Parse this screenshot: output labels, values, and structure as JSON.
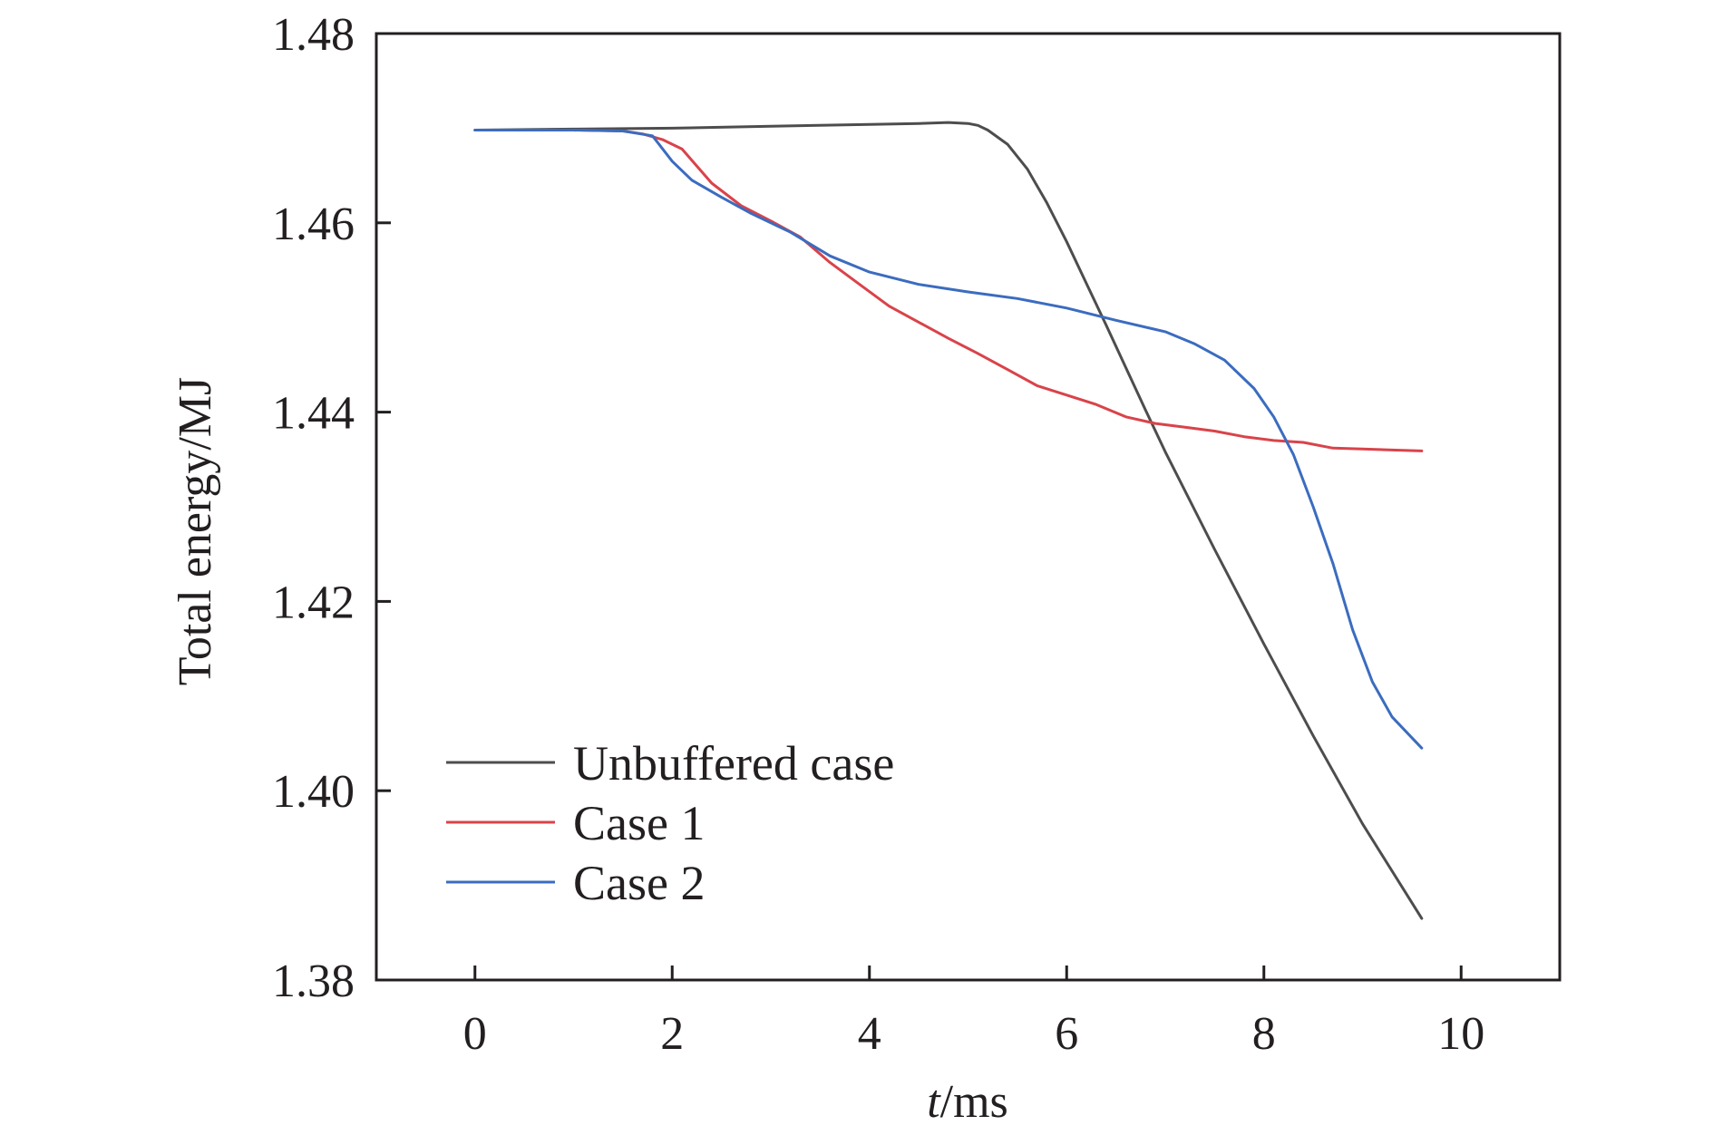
{
  "chart_data": {
    "type": "line",
    "title": "",
    "xlabel_italic": "t",
    "xlabel_unit": "/ms",
    "ylabel": "Total energy/MJ",
    "xlim": [
      -1,
      11
    ],
    "ylim": [
      1.38,
      1.48
    ],
    "xticks": [
      0,
      2,
      4,
      6,
      8,
      10
    ],
    "xtick_labels": [
      "0",
      "2",
      "4",
      "6",
      "8",
      "10"
    ],
    "yticks": [
      1.38,
      1.4,
      1.42,
      1.44,
      1.46,
      1.48
    ],
    "ytick_labels": [
      "1.38",
      "1.40",
      "1.42",
      "1.44",
      "1.46",
      "1.48"
    ],
    "grid": false,
    "legend_position": "bottom-left",
    "series": [
      {
        "name": "Unbuffered case",
        "color": "#4d4d4d",
        "x": [
          0,
          1,
          2,
          3,
          4,
          4.5,
          4.8,
          5.0,
          5.1,
          5.2,
          5.4,
          5.6,
          5.8,
          6.0,
          6.2,
          6.4,
          6.6,
          6.8,
          7.0,
          7.5,
          8.0,
          8.5,
          9.0,
          9.6
        ],
        "y": [
          1.4698,
          1.4699,
          1.47,
          1.4702,
          1.4704,
          1.4705,
          1.4706,
          1.4705,
          1.4703,
          1.4698,
          1.4683,
          1.4657,
          1.4621,
          1.458,
          1.4536,
          1.4492,
          1.4447,
          1.4402,
          1.4358,
          1.4255,
          1.4155,
          1.4058,
          1.3965,
          1.3865
        ]
      },
      {
        "name": "Case 1",
        "color": "#d9434a",
        "x": [
          0,
          1,
          1.5,
          1.7,
          1.9,
          2.1,
          2.4,
          2.7,
          3.0,
          3.3,
          3.6,
          3.9,
          4.2,
          4.5,
          4.8,
          5.1,
          5.4,
          5.7,
          6.0,
          6.3,
          6.6,
          6.9,
          7.2,
          7.5,
          7.8,
          8.1,
          8.4,
          8.7,
          9.0,
          9.3,
          9.6
        ],
        "y": [
          1.4698,
          1.4698,
          1.4697,
          1.4694,
          1.4688,
          1.4678,
          1.4642,
          1.4618,
          1.4602,
          1.4585,
          1.4558,
          1.4535,
          1.4512,
          1.4495,
          1.4478,
          1.4462,
          1.4445,
          1.4428,
          1.4418,
          1.4408,
          1.4395,
          1.4388,
          1.4384,
          1.438,
          1.4374,
          1.437,
          1.4368,
          1.4362,
          1.4361,
          1.436,
          1.4359
        ]
      },
      {
        "name": "Case 2",
        "color": "#3b6cbf",
        "x": [
          0,
          1,
          1.5,
          1.8,
          2.0,
          2.2,
          2.5,
          2.8,
          3.2,
          3.6,
          4.0,
          4.5,
          5.0,
          5.5,
          6.0,
          6.5,
          7.0,
          7.3,
          7.6,
          7.9,
          8.1,
          8.3,
          8.5,
          8.7,
          8.9,
          9.1,
          9.3,
          9.6
        ],
        "y": [
          1.4698,
          1.4698,
          1.4697,
          1.4692,
          1.4665,
          1.4645,
          1.4627,
          1.461,
          1.459,
          1.4565,
          1.4548,
          1.4535,
          1.4527,
          1.452,
          1.451,
          1.4497,
          1.4485,
          1.4472,
          1.4455,
          1.4425,
          1.4395,
          1.4355,
          1.43,
          1.424,
          1.417,
          1.4115,
          1.4078,
          1.4045
        ]
      }
    ]
  }
}
